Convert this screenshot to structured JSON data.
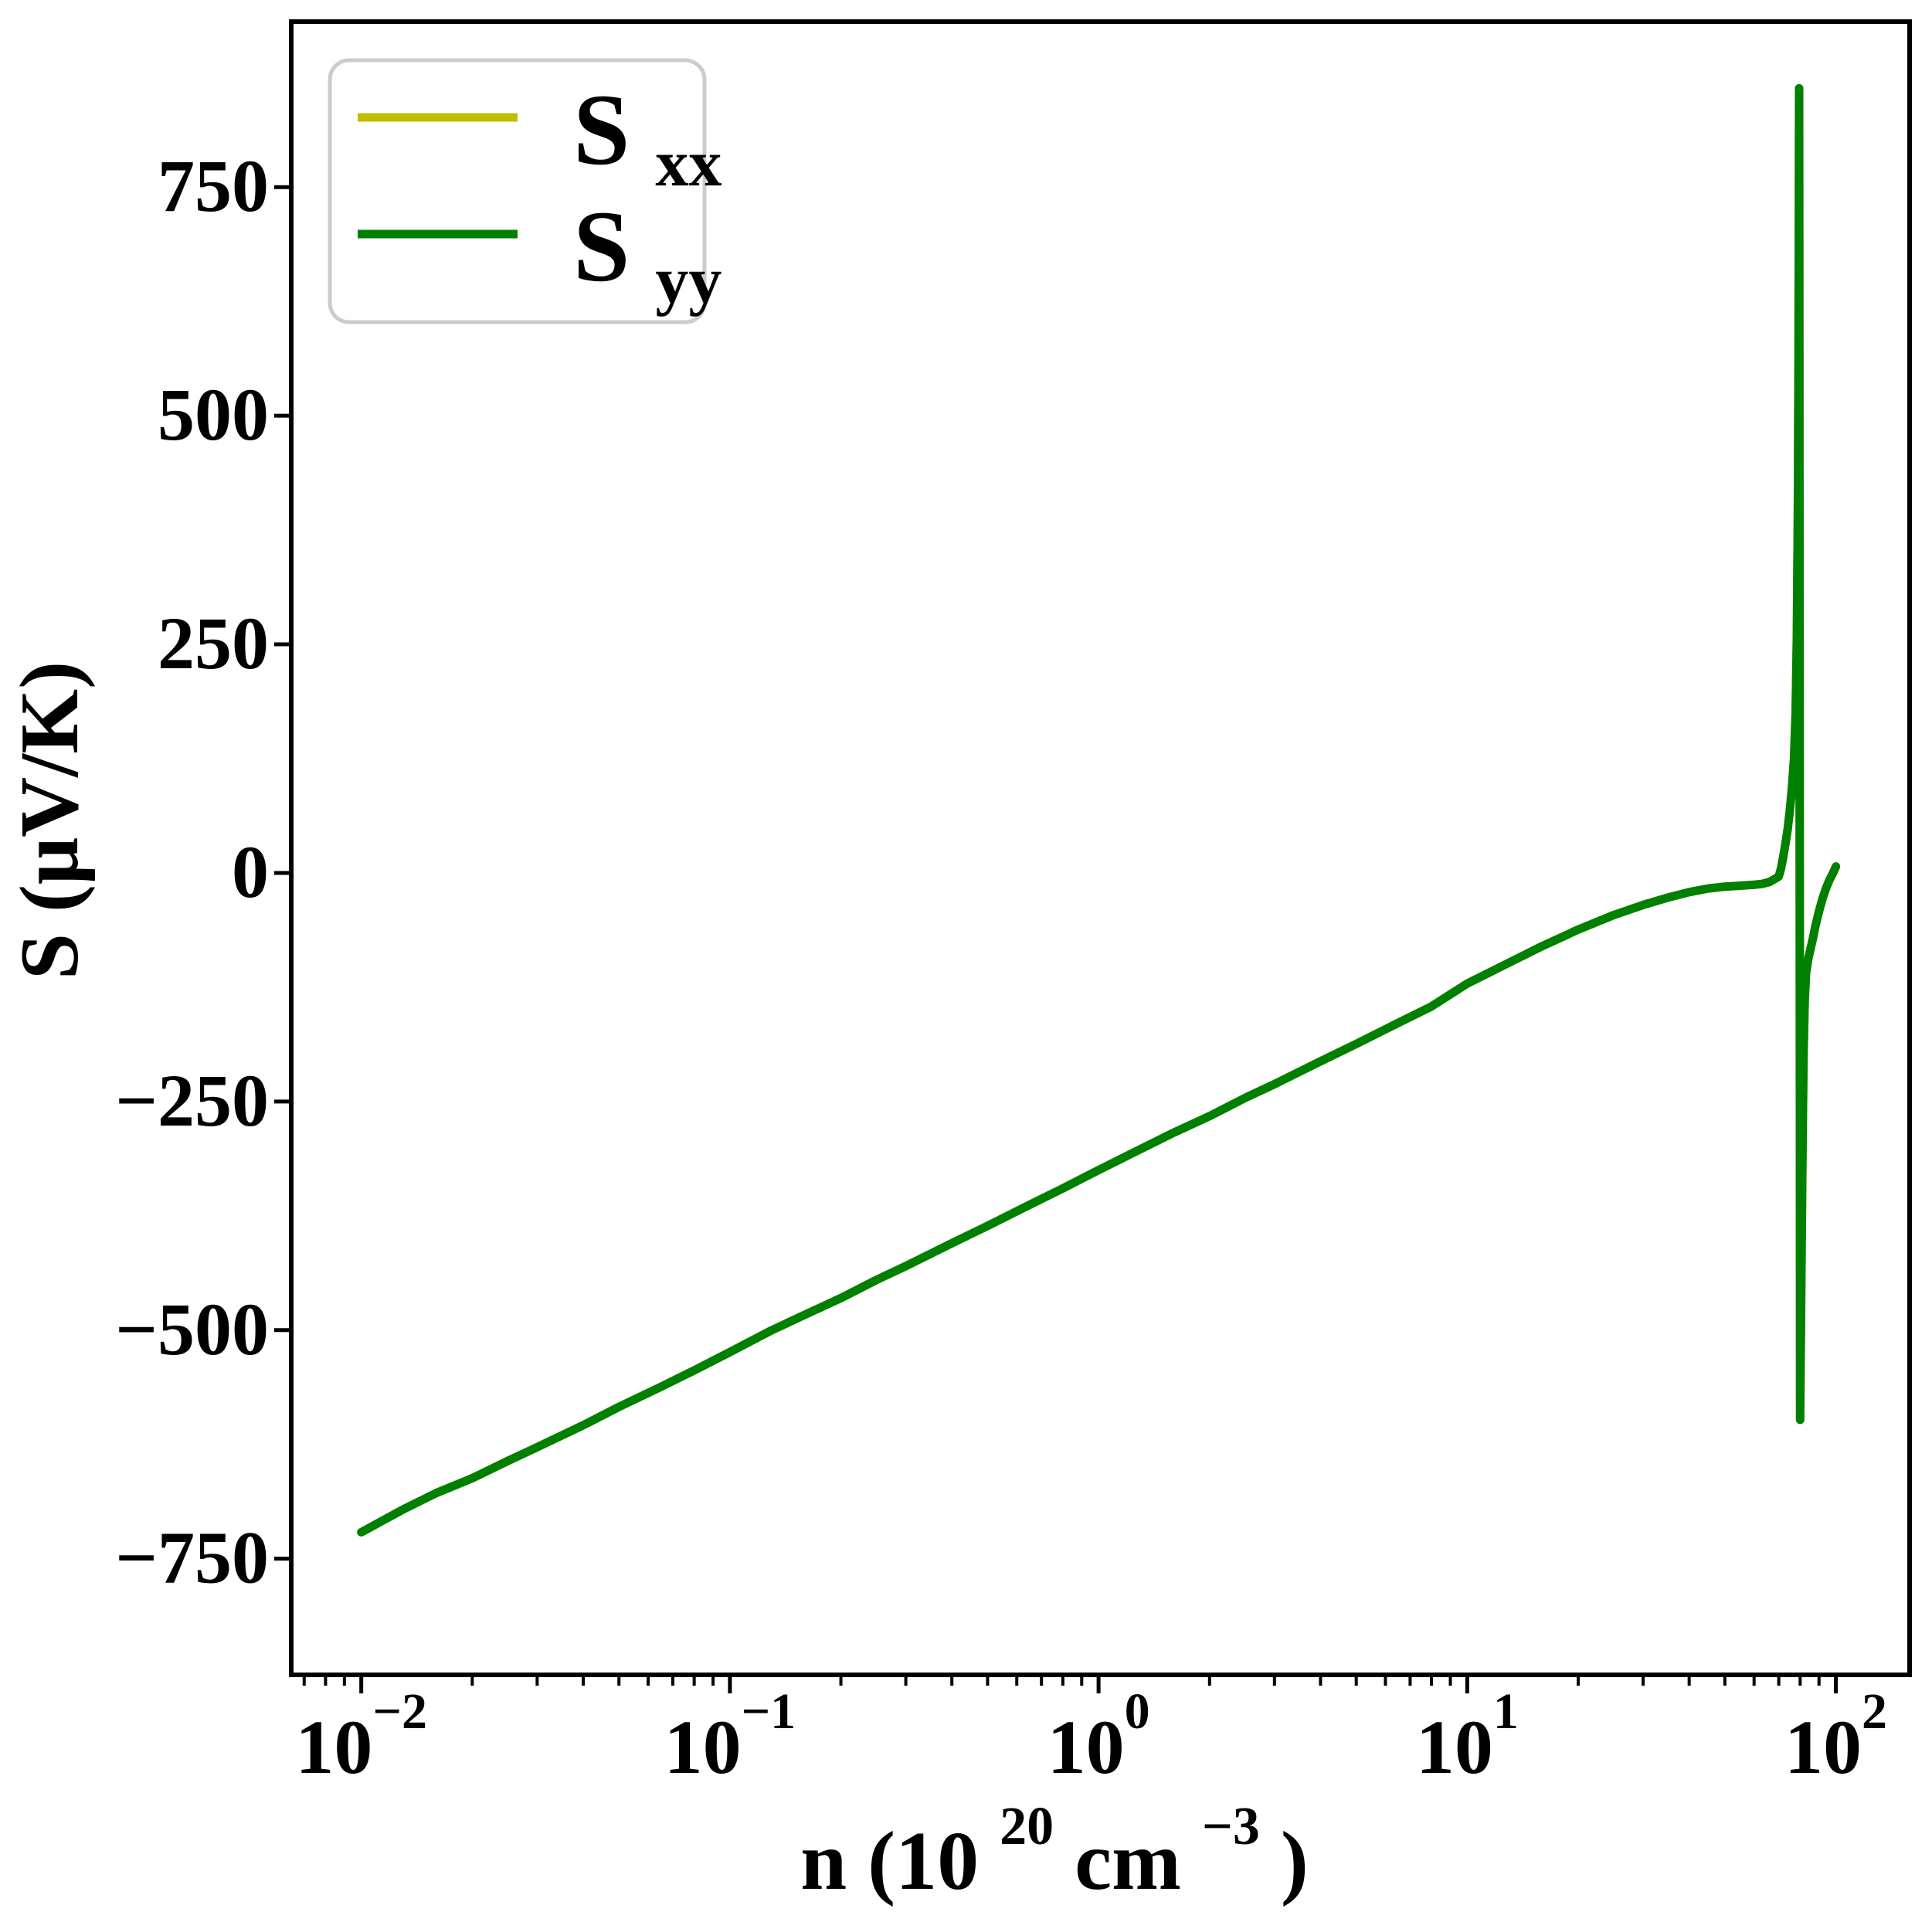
{
  "chart_data": {
    "type": "line",
    "title": "",
    "xlabel_parts": {
      "prefix": "n (10",
      "sup1": "20",
      "mid": " cm",
      "sup2": "−3",
      "suffix": ")"
    },
    "ylabel": "S (μV/K)",
    "x_scale": "log",
    "xlim_log10": [
      -2.19,
      2.2
    ],
    "ylim": [
      -877,
      931
    ],
    "grid": false,
    "colors": {
      "axis": "#000000",
      "legend_edge": "#cccccc",
      "background": "#ffffff"
    },
    "y_ticks": [
      {
        "value": 750,
        "label": "750"
      },
      {
        "value": 500,
        "label": "500"
      },
      {
        "value": 250,
        "label": "250"
      },
      {
        "value": 0,
        "label": "0"
      },
      {
        "value": -250,
        "label": "−250"
      },
      {
        "value": -500,
        "label": "−500"
      },
      {
        "value": -750,
        "label": "−750"
      }
    ],
    "x_major_ticks": [
      {
        "value": 0.01,
        "base": "10",
        "exp": "−2"
      },
      {
        "value": 0.1,
        "base": "10",
        "exp": "−1"
      },
      {
        "value": 1,
        "base": "10",
        "exp": "0"
      },
      {
        "value": 10,
        "base": "10",
        "exp": "1"
      },
      {
        "value": 100,
        "base": "10",
        "exp": "2"
      }
    ],
    "x_minor_ticks": [
      0.007,
      0.008,
      0.009,
      0.02,
      0.03,
      0.04,
      0.05,
      0.06,
      0.07,
      0.08,
      0.09,
      0.2,
      0.3,
      0.4,
      0.5,
      0.6,
      0.7,
      0.8,
      0.9,
      2,
      3,
      4,
      5,
      6,
      7,
      8,
      9,
      20,
      30,
      40,
      50,
      60,
      70,
      80,
      90
    ],
    "legend": {
      "position": "upper left",
      "entries": [
        {
          "label_base": "S",
          "label_sub": "xx",
          "color": "#bfbf00"
        },
        {
          "label_base": "S",
          "label_sub": "yy",
          "color": "#008000"
        }
      ]
    },
    "series": [
      {
        "name": "Sxx",
        "color": "#bfbf00",
        "points": [
          [
            0.01,
            -721
          ],
          [
            0.013,
            -696
          ],
          [
            0.016,
            -678
          ],
          [
            0.02,
            -662
          ],
          [
            0.025,
            -643
          ],
          [
            0.03,
            -628
          ],
          [
            0.04,
            -604
          ],
          [
            0.05,
            -584
          ],
          [
            0.065,
            -562
          ],
          [
            0.08,
            -544
          ],
          [
            0.1,
            -524
          ],
          [
            0.13,
            -500
          ],
          [
            0.16,
            -483
          ],
          [
            0.2,
            -465
          ],
          [
            0.25,
            -445
          ],
          [
            0.3,
            -430
          ],
          [
            0.4,
            -405
          ],
          [
            0.5,
            -386
          ],
          [
            0.65,
            -363
          ],
          [
            0.8,
            -345
          ],
          [
            1,
            -325
          ],
          [
            1.3,
            -302
          ],
          [
            1.6,
            -284
          ],
          [
            2,
            -266
          ],
          [
            2.5,
            -246
          ],
          [
            3,
            -231
          ],
          [
            4,
            -206
          ],
          [
            5,
            -187
          ],
          [
            6.5,
            -164
          ],
          [
            8,
            -146
          ],
          [
            10,
            -121
          ],
          [
            13,
            -98
          ],
          [
            16,
            -80
          ],
          [
            20,
            -62
          ],
          [
            25,
            -46
          ],
          [
            30,
            -35
          ],
          [
            35,
            -27
          ],
          [
            40,
            -21
          ],
          [
            45,
            -17
          ],
          [
            50,
            -15
          ],
          [
            55,
            -14
          ],
          [
            60,
            -13
          ],
          [
            63,
            -12
          ],
          [
            66,
            -10
          ],
          [
            68,
            -7
          ],
          [
            70,
            -4
          ],
          [
            71,
            5
          ],
          [
            72,
            18
          ],
          [
            73,
            32
          ],
          [
            74,
            48
          ],
          [
            75,
            68
          ],
          [
            76,
            93
          ],
          [
            77,
            125
          ],
          [
            77.8,
            175
          ],
          [
            78.4,
            260
          ],
          [
            78.9,
            400
          ],
          [
            79.2,
            560
          ],
          [
            79.4,
            720
          ],
          [
            79.5,
            858
          ],
          [
            80,
            -598
          ],
          [
            80.3,
            -520
          ],
          [
            80.7,
            -420
          ],
          [
            81.2,
            -300
          ],
          [
            81.7,
            -200
          ],
          [
            82.3,
            -140
          ],
          [
            83,
            -110
          ],
          [
            84,
            -96
          ],
          [
            85,
            -86
          ],
          [
            86.5,
            -73
          ],
          [
            88,
            -58
          ],
          [
            90,
            -42
          ],
          [
            92,
            -28
          ],
          [
            94,
            -17
          ],
          [
            96,
            -8
          ],
          [
            98,
            -1
          ],
          [
            99,
            3
          ],
          [
            100,
            7
          ]
        ]
      },
      {
        "name": "Syy",
        "color": "#008000",
        "points": [
          [
            0.01,
            -721
          ],
          [
            0.013,
            -696
          ],
          [
            0.016,
            -678
          ],
          [
            0.02,
            -662
          ],
          [
            0.025,
            -643
          ],
          [
            0.03,
            -628
          ],
          [
            0.04,
            -604
          ],
          [
            0.05,
            -584
          ],
          [
            0.065,
            -562
          ],
          [
            0.08,
            -544
          ],
          [
            0.1,
            -524
          ],
          [
            0.13,
            -500
          ],
          [
            0.16,
            -483
          ],
          [
            0.2,
            -465
          ],
          [
            0.25,
            -445
          ],
          [
            0.3,
            -430
          ],
          [
            0.4,
            -405
          ],
          [
            0.5,
            -386
          ],
          [
            0.65,
            -363
          ],
          [
            0.8,
            -345
          ],
          [
            1,
            -325
          ],
          [
            1.3,
            -302
          ],
          [
            1.6,
            -284
          ],
          [
            2,
            -266
          ],
          [
            2.5,
            -246
          ],
          [
            3,
            -231
          ],
          [
            4,
            -206
          ],
          [
            5,
            -187
          ],
          [
            6.5,
            -164
          ],
          [
            8,
            -146
          ],
          [
            10,
            -121
          ],
          [
            13,
            -98
          ],
          [
            16,
            -80
          ],
          [
            20,
            -62
          ],
          [
            25,
            -46
          ],
          [
            30,
            -35
          ],
          [
            35,
            -27
          ],
          [
            40,
            -21
          ],
          [
            45,
            -17
          ],
          [
            50,
            -15
          ],
          [
            55,
            -14
          ],
          [
            60,
            -13
          ],
          [
            63,
            -12
          ],
          [
            66,
            -10
          ],
          [
            68,
            -7
          ],
          [
            70,
            -4
          ],
          [
            71,
            5
          ],
          [
            72,
            18
          ],
          [
            73,
            32
          ],
          [
            74,
            48
          ],
          [
            75,
            68
          ],
          [
            76,
            93
          ],
          [
            77,
            125
          ],
          [
            77.8,
            175
          ],
          [
            78.4,
            260
          ],
          [
            78.9,
            400
          ],
          [
            79.2,
            560
          ],
          [
            79.4,
            720
          ],
          [
            79.5,
            858
          ],
          [
            80,
            -598
          ],
          [
            80.3,
            -520
          ],
          [
            80.7,
            -420
          ],
          [
            81.2,
            -300
          ],
          [
            81.7,
            -200
          ],
          [
            82.3,
            -140
          ],
          [
            83,
            -110
          ],
          [
            84,
            -96
          ],
          [
            85,
            -86
          ],
          [
            86.5,
            -73
          ],
          [
            88,
            -58
          ],
          [
            90,
            -42
          ],
          [
            92,
            -28
          ],
          [
            94,
            -17
          ],
          [
            96,
            -8
          ],
          [
            98,
            -1
          ],
          [
            99,
            3
          ],
          [
            100,
            7
          ]
        ]
      }
    ]
  }
}
